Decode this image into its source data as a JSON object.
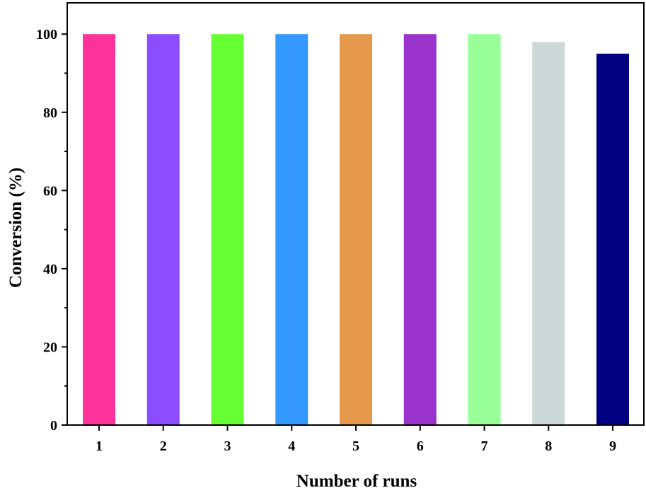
{
  "chart_data": {
    "type": "bar",
    "title": "",
    "xlabel": "Number of runs",
    "ylabel": "Conversion (%)",
    "categories": [
      "1",
      "2",
      "3",
      "4",
      "5",
      "6",
      "7",
      "8",
      "9"
    ],
    "values": [
      100,
      100,
      100,
      100,
      100,
      100,
      100,
      98,
      95
    ],
    "colors": [
      "#ff3399",
      "#8c4dff",
      "#66ff33",
      "#3399ff",
      "#e6994d",
      "#9933cc",
      "#99ff99",
      "#cdd9d9",
      "#000080"
    ],
    "ylim": [
      0,
      108
    ],
    "yticks": [
      "0",
      "20",
      "40",
      "60",
      "80",
      "100"
    ],
    "grid": false,
    "legend": "none"
  }
}
